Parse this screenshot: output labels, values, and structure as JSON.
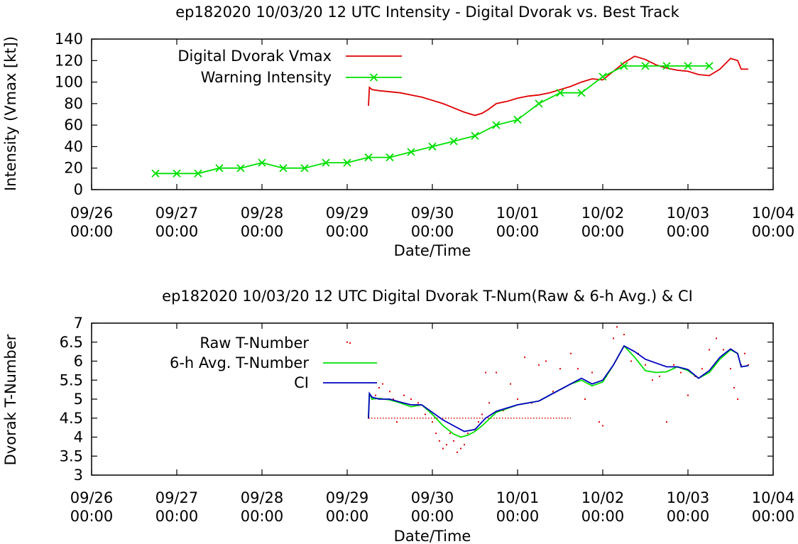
{
  "chart_data": [
    {
      "type": "line",
      "title": "ep182020 10/03/20  12 UTC Intensity - Digital Dvorak vs. Best Track",
      "xlabel": "Date/Time",
      "ylabel": "Intensity (Vmax [kt])",
      "xlim": [
        "09/26 00:00",
        "10/04 00:00"
      ],
      "ylim": [
        0,
        140
      ],
      "x_ticks": [
        {
          "date": "09/26",
          "time": "00:00"
        },
        {
          "date": "09/27",
          "time": "00:00"
        },
        {
          "date": "09/28",
          "time": "00:00"
        },
        {
          "date": "09/29",
          "time": "00:00"
        },
        {
          "date": "09/30",
          "time": "00:00"
        },
        {
          "date": "10/01",
          "time": "00:00"
        },
        {
          "date": "10/02",
          "time": "00:00"
        },
        {
          "date": "10/03",
          "time": "00:00"
        },
        {
          "date": "10/04",
          "time": "00:00"
        }
      ],
      "y_ticks": [
        "0",
        "20",
        "40",
        "60",
        "80",
        "100",
        "120",
        "140"
      ],
      "legend_position": "top-left",
      "series": [
        {
          "name": "Digital Dvorak Vmax",
          "color": "#e00000",
          "marker": "none",
          "points": [
            [
              "09/29 06:00",
              78
            ],
            [
              "09/29 06:15",
              95
            ],
            [
              "09/29 07:00",
              93
            ],
            [
              "09/29 09:00",
              92
            ],
            [
              "09/29 12:00",
              91
            ],
            [
              "09/29 15:00",
              90
            ],
            [
              "09/29 18:00",
              88
            ],
            [
              "09/29 21:00",
              86
            ],
            [
              "09/30 00:00",
              83
            ],
            [
              "09/30 03:00",
              80
            ],
            [
              "09/30 06:00",
              76
            ],
            [
              "09/30 09:00",
              72
            ],
            [
              "09/30 12:00",
              69
            ],
            [
              "09/30 14:00",
              71
            ],
            [
              "09/30 16:00",
              75
            ],
            [
              "09/30 18:00",
              80
            ],
            [
              "09/30 21:00",
              82
            ],
            [
              "10/01 00:00",
              85
            ],
            [
              "10/01 03:00",
              87
            ],
            [
              "10/01 06:00",
              88
            ],
            [
              "10/01 09:00",
              90
            ],
            [
              "10/01 12:00",
              93
            ],
            [
              "10/01 15:00",
              96
            ],
            [
              "10/01 18:00",
              100
            ],
            [
              "10/01 21:00",
              103
            ],
            [
              "10/02 00:00",
              102
            ],
            [
              "10/02 03:00",
              110
            ],
            [
              "10/02 06:00",
              118
            ],
            [
              "10/02 09:00",
              124
            ],
            [
              "10/02 12:00",
              121
            ],
            [
              "10/02 15:00",
              116
            ],
            [
              "10/02 18:00",
              113
            ],
            [
              "10/02 21:00",
              111
            ],
            [
              "10/03 00:00",
              110
            ],
            [
              "10/03 03:00",
              107
            ],
            [
              "10/03 06:00",
              106
            ],
            [
              "10/03 09:00",
              112
            ],
            [
              "10/03 12:00",
              122
            ],
            [
              "10/03 14:00",
              120
            ],
            [
              "10/03 15:00",
              112
            ],
            [
              "10/03 17:00",
              112
            ]
          ]
        },
        {
          "name": "Warning Intensity",
          "color": "#00e000",
          "marker": "x",
          "points": [
            [
              "09/26 18:00",
              15
            ],
            [
              "09/27 00:00",
              15
            ],
            [
              "09/27 06:00",
              15
            ],
            [
              "09/27 12:00",
              20
            ],
            [
              "09/27 18:00",
              20
            ],
            [
              "09/28 00:00",
              25
            ],
            [
              "09/28 06:00",
              20
            ],
            [
              "09/28 12:00",
              20
            ],
            [
              "09/28 18:00",
              25
            ],
            [
              "09/29 00:00",
              25
            ],
            [
              "09/29 06:00",
              30
            ],
            [
              "09/29 12:00",
              30
            ],
            [
              "09/29 18:00",
              35
            ],
            [
              "09/30 00:00",
              40
            ],
            [
              "09/30 06:00",
              45
            ],
            [
              "09/30 12:00",
              50
            ],
            [
              "09/30 18:00",
              60
            ],
            [
              "10/01 00:00",
              65
            ],
            [
              "10/01 06:00",
              80
            ],
            [
              "10/01 12:00",
              90
            ],
            [
              "10/01 18:00",
              90
            ],
            [
              "10/02 00:00",
              105
            ],
            [
              "10/02 06:00",
              115
            ],
            [
              "10/02 12:00",
              115
            ],
            [
              "10/02 18:00",
              115
            ],
            [
              "10/03 00:00",
              115
            ],
            [
              "10/03 06:00",
              115
            ]
          ]
        }
      ]
    },
    {
      "type": "line",
      "title": "ep182020 10/03/20  12 UTC Digital Dvorak T-Num(Raw & 6-h Avg.) & CI",
      "xlabel": "Date/Time",
      "ylabel": "Dvorak T-Number",
      "xlim": [
        "09/26 00:00",
        "10/04 00:00"
      ],
      "ylim": [
        3,
        7
      ],
      "x_ticks": [
        {
          "date": "09/26",
          "time": "00:00"
        },
        {
          "date": "09/27",
          "time": "00:00"
        },
        {
          "date": "09/28",
          "time": "00:00"
        },
        {
          "date": "09/29",
          "time": "00:00"
        },
        {
          "date": "09/30",
          "time": "00:00"
        },
        {
          "date": "10/01",
          "time": "00:00"
        },
        {
          "date": "10/02",
          "time": "00:00"
        },
        {
          "date": "10/03",
          "time": "00:00"
        },
        {
          "date": "10/04",
          "time": "00:00"
        }
      ],
      "y_ticks": [
        "3",
        "3.5",
        "4",
        "4.5",
        "5",
        "5.5",
        "6",
        "6.5",
        "7"
      ],
      "legend_position": "top-left",
      "series": [
        {
          "name": "Raw T-Number",
          "color": "#e00000",
          "marker": "dot",
          "baseline_segment": {
            "start": "09/29 06:00",
            "end": "10/01 15:00",
            "value": 4.5
          },
          "points": [
            [
              "09/29 00:00",
              6.5
            ],
            [
              "09/29 06:00",
              4.5
            ],
            [
              "09/29 07:00",
              5.0
            ],
            [
              "09/29 08:00",
              5.1
            ],
            [
              "09/29 09:00",
              5.3
            ],
            [
              "09/29 10:00",
              5.4
            ],
            [
              "09/29 12:00",
              5.2
            ],
            [
              "09/29 13:00",
              5.0
            ],
            [
              "09/29 14:00",
              4.4
            ],
            [
              "09/29 16:00",
              5.1
            ],
            [
              "09/29 18:00",
              5.0
            ],
            [
              "09/29 20:00",
              4.9
            ],
            [
              "09/29 22:00",
              4.6
            ],
            [
              "09/30 00:00",
              4.4
            ],
            [
              "09/30 01:00",
              4.1
            ],
            [
              "09/30 02:00",
              3.9
            ],
            [
              "09/30 03:00",
              3.7
            ],
            [
              "09/30 04:00",
              3.8
            ],
            [
              "09/30 05:00",
              4.1
            ],
            [
              "09/30 06:00",
              3.9
            ],
            [
              "09/30 07:00",
              3.6
            ],
            [
              "09/30 08:00",
              3.7
            ],
            [
              "09/30 09:00",
              3.8
            ],
            [
              "09/30 10:00",
              4.1
            ],
            [
              "09/30 12:00",
              4.2
            ],
            [
              "09/30 13:00",
              4.4
            ],
            [
              "09/30 14:00",
              4.6
            ],
            [
              "09/30 15:00",
              5.7
            ],
            [
              "09/30 16:00",
              4.9
            ],
            [
              "09/30 18:00",
              5.7
            ],
            [
              "09/30 20:00",
              4.7
            ],
            [
              "09/30 22:00",
              5.4
            ],
            [
              "10/01 00:00",
              5.0
            ],
            [
              "10/01 02:00",
              6.1
            ],
            [
              "10/01 04:00",
              4.9
            ],
            [
              "10/01 06:00",
              5.9
            ],
            [
              "10/01 08:00",
              6.0
            ],
            [
              "10/01 10:00",
              5.2
            ],
            [
              "10/01 12:00",
              5.8
            ],
            [
              "10/01 13:00",
              5.3
            ],
            [
              "10/01 15:00",
              6.2
            ],
            [
              "10/01 17:00",
              5.8
            ],
            [
              "10/01 19:00",
              5.0
            ],
            [
              "10/01 21:00",
              5.7
            ],
            [
              "10/01 23:00",
              4.4
            ],
            [
              "10/02 00:00",
              4.3
            ],
            [
              "10/02 01:00",
              5.6
            ],
            [
              "10/02 03:00",
              6.6
            ],
            [
              "10/02 04:00",
              6.9
            ],
            [
              "10/02 06:00",
              6.7
            ],
            [
              "10/02 08:00",
              6.0
            ],
            [
              "10/02 10:00",
              6.2
            ],
            [
              "10/02 12:00",
              5.9
            ],
            [
              "10/02 14:00",
              5.5
            ],
            [
              "10/02 16:00",
              5.6
            ],
            [
              "10/02 18:00",
              4.4
            ],
            [
              "10/02 20:00",
              5.9
            ],
            [
              "10/02 22:00",
              5.7
            ],
            [
              "10/03 00:00",
              5.1
            ],
            [
              "10/03 02:00",
              5.6
            ],
            [
              "10/03 04:00",
              5.8
            ],
            [
              "10/03 06:00",
              6.3
            ],
            [
              "10/03 08:00",
              6.6
            ],
            [
              "10/03 10:00",
              6.3
            ],
            [
              "10/03 12:00",
              5.8
            ],
            [
              "10/03 13:00",
              5.3
            ],
            [
              "10/03 14:00",
              5.0
            ],
            [
              "10/03 15:00",
              5.9
            ],
            [
              "10/03 16:00",
              6.2
            ],
            [
              "10/03 17:00",
              5.9
            ]
          ]
        },
        {
          "name": "6-h Avg. T-Number",
          "color": "#00e000",
          "marker": "none",
          "points": [
            [
              "09/29 06:00",
              4.5
            ],
            [
              "09/29 06:15",
              5.15
            ],
            [
              "09/29 07:00",
              5.0
            ],
            [
              "09/29 09:00",
              5.02
            ],
            [
              "09/29 12:00",
              4.98
            ],
            [
              "09/29 15:00",
              4.9
            ],
            [
              "09/29 18:00",
              4.8
            ],
            [
              "09/29 21:00",
              4.85
            ],
            [
              "09/30 00:00",
              4.6
            ],
            [
              "09/30 03:00",
              4.3
            ],
            [
              "09/30 06:00",
              4.08
            ],
            [
              "09/30 08:00",
              4.0
            ],
            [
              "09/30 10:00",
              4.05
            ],
            [
              "09/30 12:00",
              4.15
            ],
            [
              "09/30 14:00",
              4.3
            ],
            [
              "09/30 18:00",
              4.65
            ],
            [
              "10/01 00:00",
              4.85
            ],
            [
              "10/01 03:00",
              4.9
            ],
            [
              "10/01 06:00",
              4.95
            ],
            [
              "10/01 09:00",
              5.1
            ],
            [
              "10/01 12:00",
              5.25
            ],
            [
              "10/01 15:00",
              5.4
            ],
            [
              "10/01 18:00",
              5.5
            ],
            [
              "10/01 21:00",
              5.35
            ],
            [
              "10/02 00:00",
              5.45
            ],
            [
              "10/02 03:00",
              5.9
            ],
            [
              "10/02 06:00",
              6.4
            ],
            [
              "10/02 09:00",
              6.1
            ],
            [
              "10/02 12:00",
              5.75
            ],
            [
              "10/02 15:00",
              5.7
            ],
            [
              "10/02 18:00",
              5.72
            ],
            [
              "10/02 21:00",
              5.85
            ],
            [
              "10/03 00:00",
              5.75
            ],
            [
              "10/03 03:00",
              5.55
            ],
            [
              "10/03 06:00",
              5.7
            ],
            [
              "10/03 09:00",
              6.05
            ],
            [
              "10/03 12:00",
              6.3
            ],
            [
              "10/03 14:00",
              6.2
            ],
            [
              "10/03 15:00",
              5.85
            ],
            [
              "10/03 17:00",
              5.88
            ]
          ]
        },
        {
          "name": "CI",
          "color": "#0000c0",
          "marker": "none",
          "points": [
            [
              "09/29 06:00",
              4.5
            ],
            [
              "09/29 06:15",
              5.15
            ],
            [
              "09/29 07:00",
              5.05
            ],
            [
              "09/29 09:00",
              5.0
            ],
            [
              "09/29 12:00",
              5.0
            ],
            [
              "09/29 15:00",
              4.92
            ],
            [
              "09/29 18:00",
              4.85
            ],
            [
              "09/29 21:00",
              4.85
            ],
            [
              "09/30 00:00",
              4.65
            ],
            [
              "09/30 03:00",
              4.45
            ],
            [
              "09/30 06:00",
              4.3
            ],
            [
              "09/30 09:00",
              4.15
            ],
            [
              "09/30 12:00",
              4.2
            ],
            [
              "09/30 15:00",
              4.5
            ],
            [
              "09/30 18:00",
              4.68
            ],
            [
              "10/01 00:00",
              4.85
            ],
            [
              "10/01 03:00",
              4.9
            ],
            [
              "10/01 06:00",
              4.95
            ],
            [
              "10/01 09:00",
              5.1
            ],
            [
              "10/01 12:00",
              5.25
            ],
            [
              "10/01 15:00",
              5.4
            ],
            [
              "10/01 18:00",
              5.55
            ],
            [
              "10/01 21:00",
              5.4
            ],
            [
              "10/02 00:00",
              5.5
            ],
            [
              "10/02 03:00",
              5.9
            ],
            [
              "10/02 06:00",
              6.4
            ],
            [
              "10/02 09:00",
              6.25
            ],
            [
              "10/02 12:00",
              6.05
            ],
            [
              "10/02 15:00",
              5.95
            ],
            [
              "10/02 18:00",
              5.85
            ],
            [
              "10/02 21:00",
              5.85
            ],
            [
              "10/03 00:00",
              5.78
            ],
            [
              "10/03 03:00",
              5.55
            ],
            [
              "10/03 06:00",
              5.75
            ],
            [
              "10/03 09:00",
              6.1
            ],
            [
              "10/03 12:00",
              6.32
            ],
            [
              "10/03 14:00",
              6.2
            ],
            [
              "10/03 15:00",
              5.85
            ],
            [
              "10/03 17:00",
              5.88
            ]
          ]
        }
      ]
    }
  ]
}
